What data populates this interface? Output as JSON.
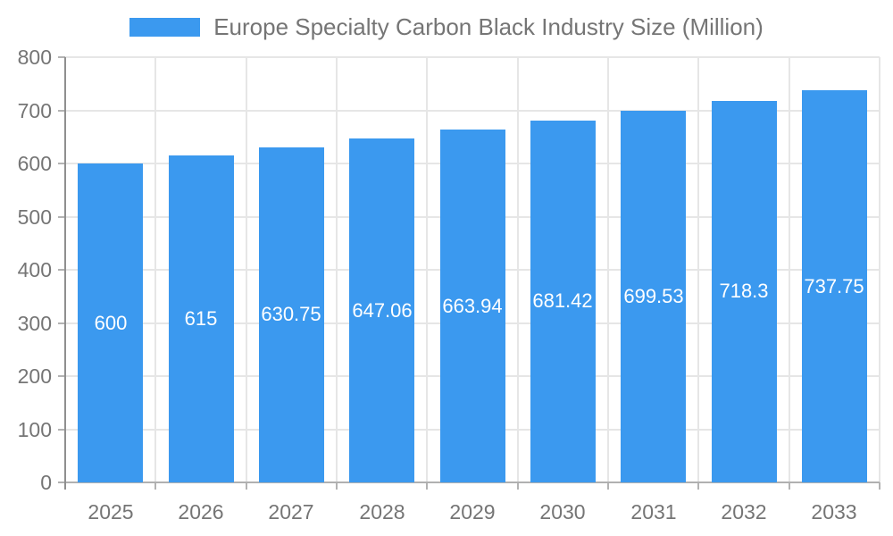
{
  "legend": {
    "label": "Europe Specialty Carbon Black Industry Size (Million)",
    "swatch_color": "#3b99ef"
  },
  "chart_data": {
    "type": "bar",
    "title": "Europe Specialty Carbon Black Industry Size (Million)",
    "categories": [
      "2025",
      "2026",
      "2027",
      "2028",
      "2029",
      "2030",
      "2031",
      "2032",
      "2033"
    ],
    "values": [
      600,
      615,
      630.75,
      647.06,
      663.94,
      681.42,
      699.53,
      718.3,
      737.75
    ],
    "value_labels": [
      "600",
      "615",
      "630.75",
      "647.06",
      "663.94",
      "681.42",
      "699.53",
      "718.3",
      "737.75"
    ],
    "xlabel": "",
    "ylabel": "",
    "ylim": [
      0,
      800
    ],
    "y_ticks": [
      0,
      100,
      200,
      300,
      400,
      500,
      600,
      700,
      800
    ],
    "grid": true,
    "legend_position": "top",
    "bar_color": "#3b99ef",
    "bar_label_color": "#ffffff",
    "axis_text_color": "#757575",
    "grid_color": "#e6e6e6",
    "x_axis_line_color": "#b0b0b0",
    "y_axis_line_color": "#8f8f8f"
  }
}
